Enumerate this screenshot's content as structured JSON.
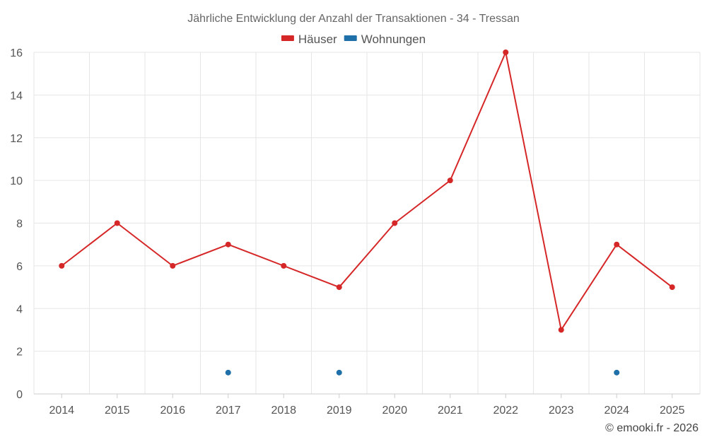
{
  "chart_data": {
    "type": "line",
    "title": "Jährliche Entwicklung der Anzahl der Transaktionen - 34 - Tressan",
    "categories": [
      "2014",
      "2015",
      "2016",
      "2017",
      "2018",
      "2019",
      "2020",
      "2021",
      "2022",
      "2023",
      "2024",
      "2025"
    ],
    "series": [
      {
        "name": "Häuser",
        "color": "#d62728",
        "style": "line-markers",
        "values": [
          6,
          8,
          6,
          7,
          6,
          5,
          8,
          10,
          16,
          3,
          7,
          5
        ]
      },
      {
        "name": "Wohnungen",
        "color": "#1f6fa8",
        "style": "markers",
        "values": [
          null,
          null,
          null,
          1,
          null,
          1,
          null,
          null,
          null,
          null,
          1,
          null
        ]
      }
    ],
    "ylim": [
      0,
      16
    ],
    "yticks": [
      0,
      2,
      4,
      6,
      8,
      10,
      12,
      14,
      16
    ],
    "xlabel": "",
    "ylabel": "",
    "grid": true,
    "legend": "top-center"
  },
  "credit": "© emooki.fr - 2026"
}
